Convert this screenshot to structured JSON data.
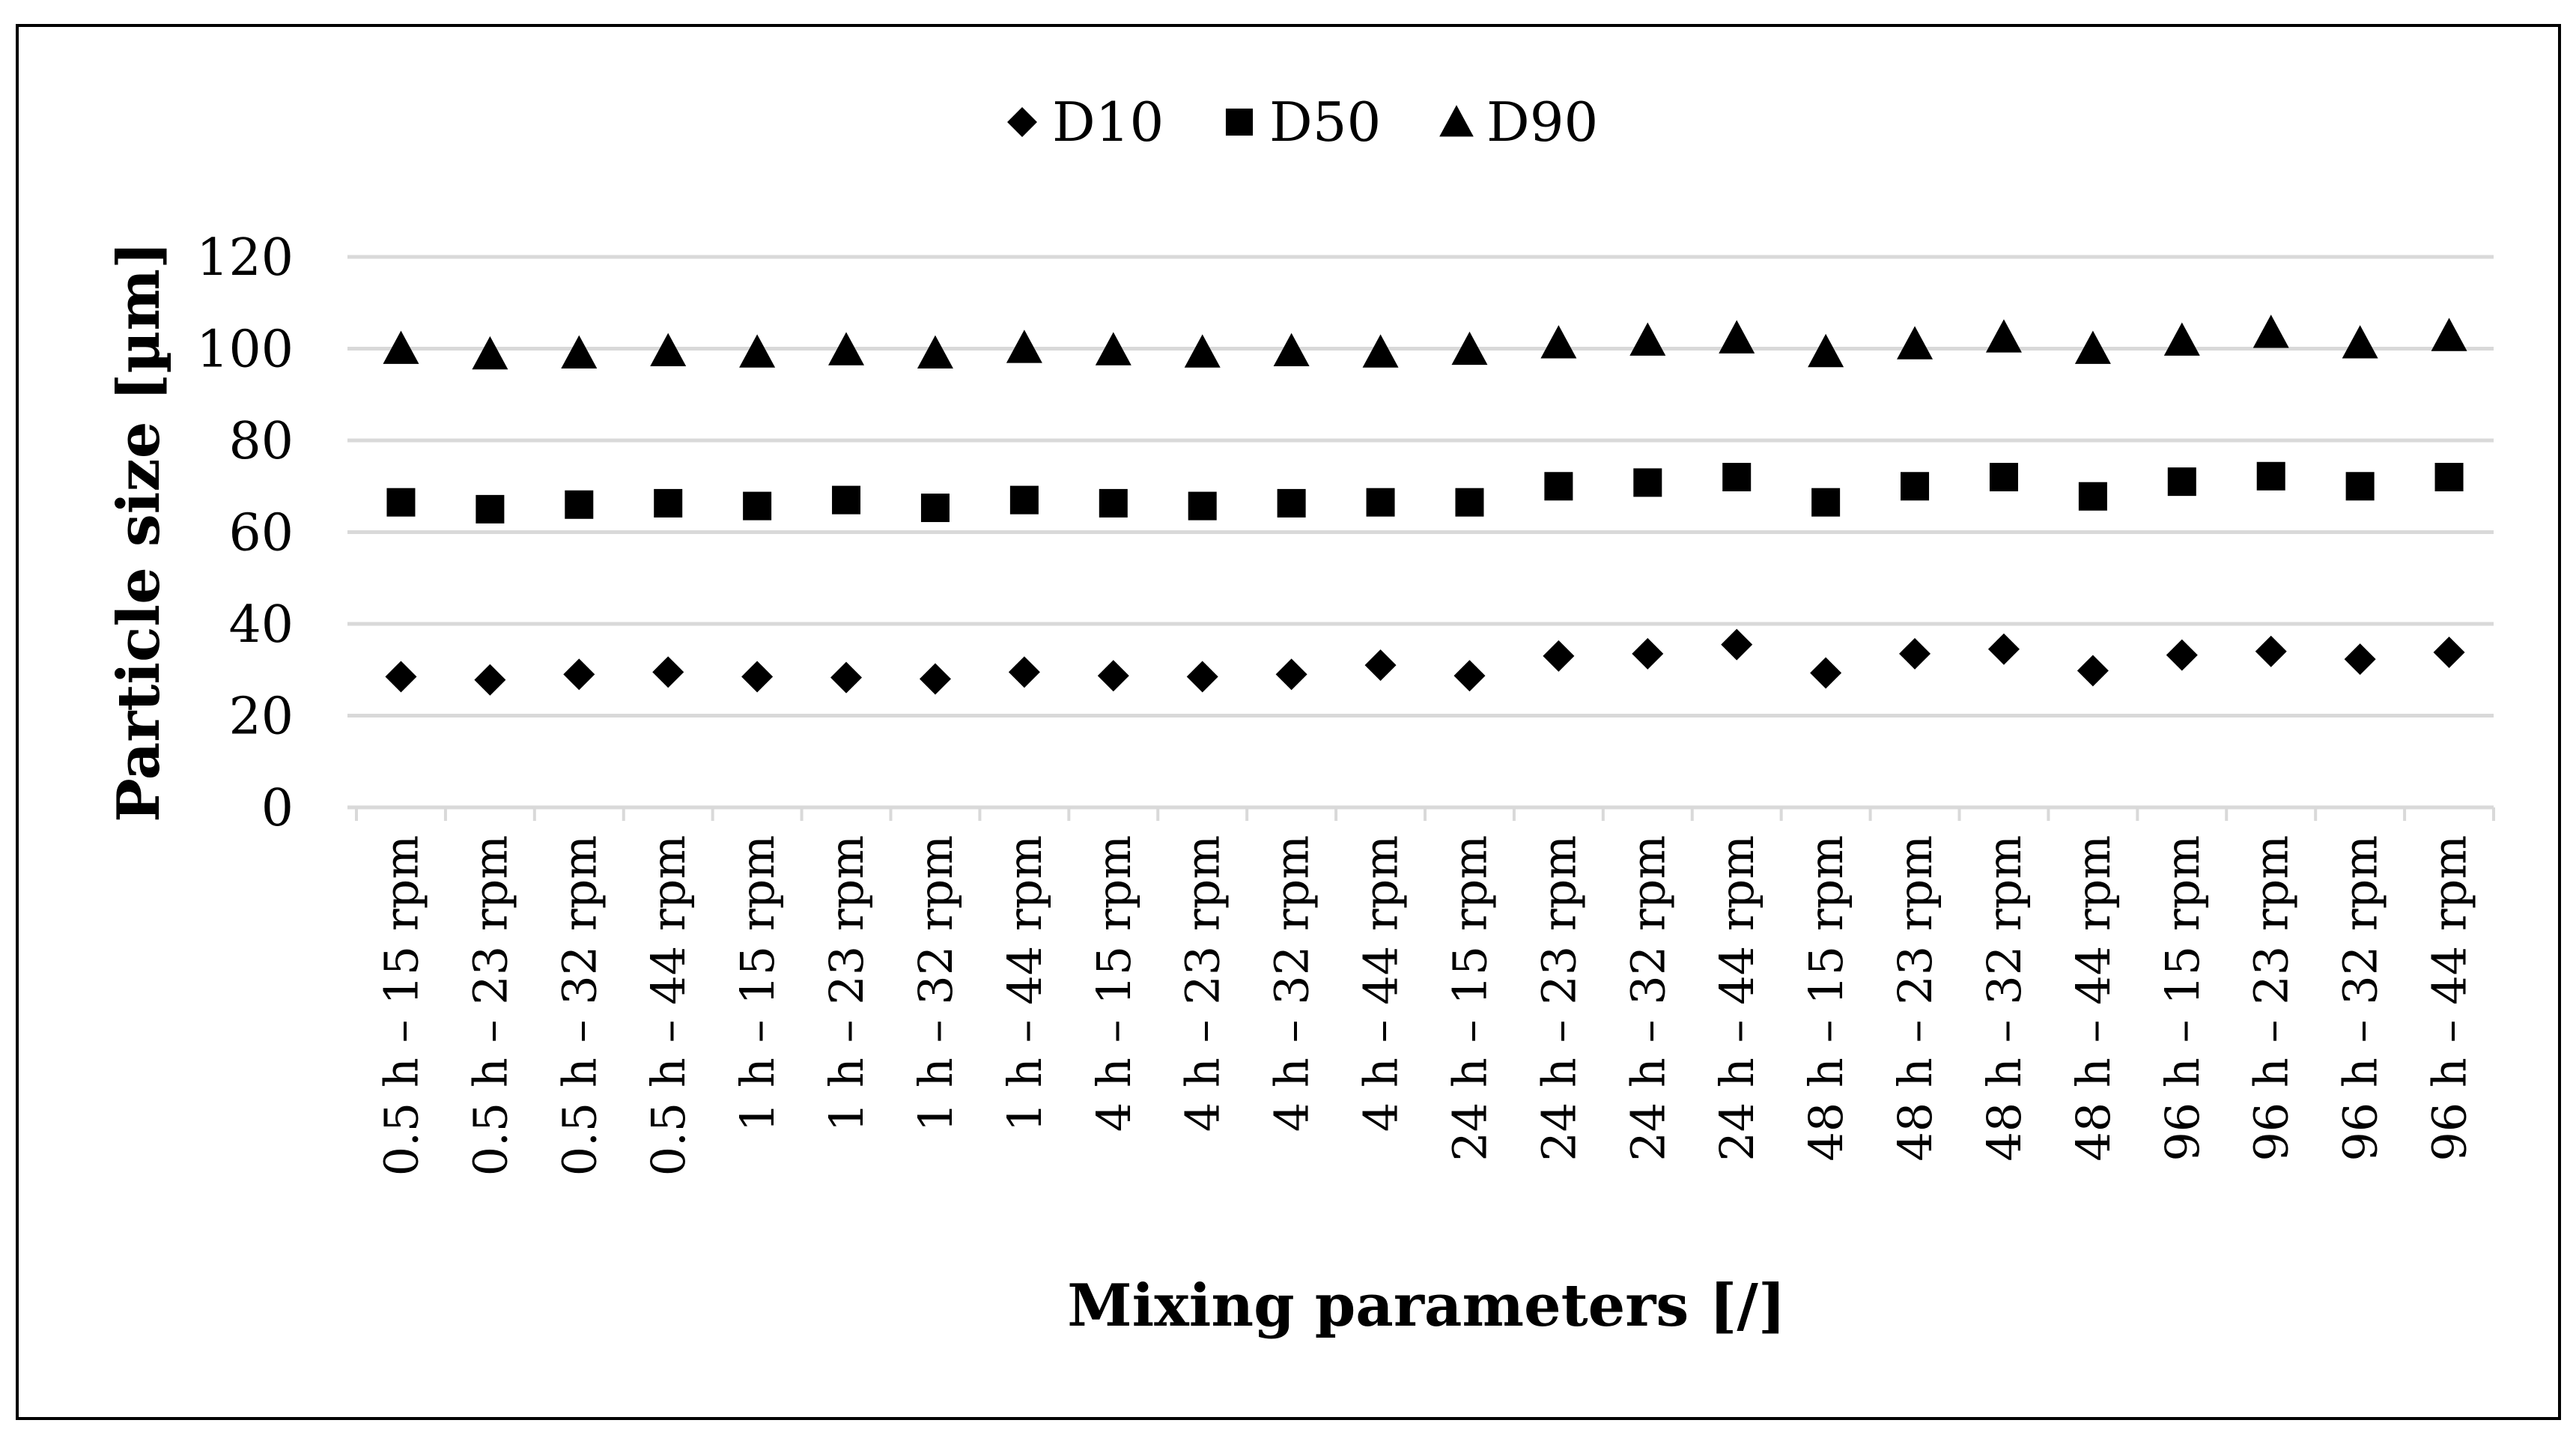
{
  "chart_data": {
    "type": "scatter",
    "title": "",
    "xlabel": "Mixing parameters [/]",
    "ylabel": "Particle size [µm]",
    "ylim": [
      0,
      120
    ],
    "yticks": [
      "0",
      "20",
      "40",
      "60",
      "80",
      "100",
      "120"
    ],
    "grid": "horizontal",
    "legend": "top-center",
    "categories": [
      "0.5 h – 15 rpm",
      "0.5 h – 23 rpm",
      "0.5 h – 32 rpm",
      "0.5 h – 44 rpm",
      "1 h – 15 rpm",
      "1 h – 23 rpm",
      "1 h – 32 rpm",
      "1 h – 44 rpm",
      "4 h – 15 rpm",
      "4 h – 23 rpm",
      "4 h – 32 rpm",
      "4 h – 44 rpm",
      "24 h – 15 rpm",
      "24 h – 23 rpm",
      "24 h – 32 rpm",
      "24 h – 44 rpm",
      "48 h – 15 rpm",
      "48 h – 23 rpm",
      "48 h – 32 rpm",
      "48 h – 44 rpm",
      "96 h – 15 rpm",
      "96 h – 23 rpm",
      "96 h – 32 rpm",
      "96 h – 44 rpm"
    ],
    "series": [
      {
        "name": "D10",
        "marker": "diamond",
        "color": "#000000",
        "values": [
          28.5,
          27.8,
          29.0,
          29.5,
          28.5,
          28.3,
          28.0,
          29.5,
          28.7,
          28.5,
          29.0,
          31.0,
          28.7,
          33.0,
          33.5,
          35.5,
          29.3,
          33.5,
          34.5,
          29.8,
          33.2,
          34.0,
          32.3,
          33.8
        ]
      },
      {
        "name": "D50",
        "marker": "square",
        "color": "#000000",
        "values": [
          66.5,
          65.0,
          66.0,
          66.3,
          65.7,
          67.0,
          65.3,
          67.0,
          66.3,
          65.7,
          66.3,
          66.5,
          66.5,
          70.0,
          70.8,
          72.0,
          66.5,
          70.0,
          72.0,
          67.8,
          71.0,
          72.2,
          70.0,
          72.0
        ]
      },
      {
        "name": "D90",
        "marker": "triangle",
        "color": "#000000",
        "values": [
          100.0,
          98.8,
          99.0,
          99.5,
          99.2,
          99.7,
          99.0,
          100.2,
          99.7,
          99.2,
          99.5,
          99.2,
          99.8,
          101.2,
          101.8,
          102.3,
          99.3,
          101.0,
          102.5,
          100.0,
          101.8,
          103.5,
          101.2,
          102.8
        ]
      }
    ]
  }
}
